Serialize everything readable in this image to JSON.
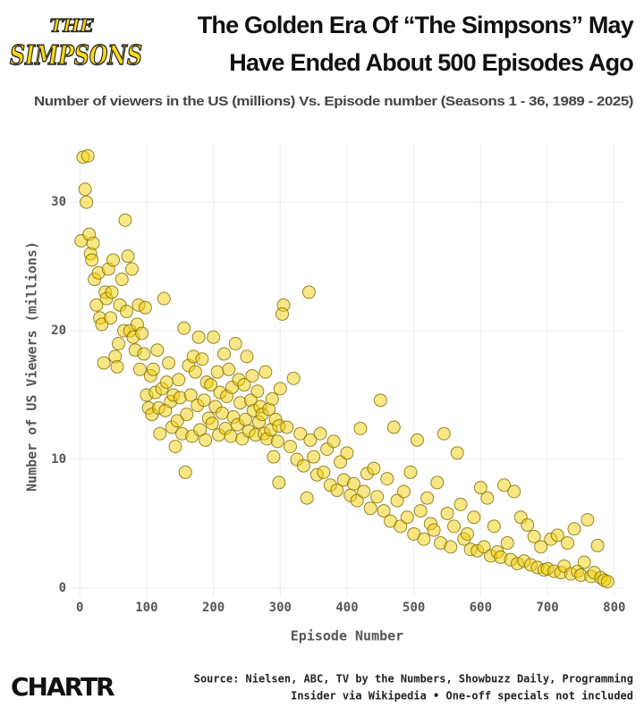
{
  "chart_data": {
    "type": "scatter",
    "logo": [
      "THE",
      "SIMPSONS"
    ],
    "title": [
      "The Golden Era Of “The Simpsons” May",
      "Have Ended About 500 Episodes Ago"
    ],
    "subtitle": "Number of viewers in the US (millions) Vs. Episode number (Seasons 1 - 36, 1989 - 2025)",
    "x_label": "Episode Number",
    "y_label": "Number of US Viewers (millions)",
    "source": [
      "Source: Nielsen, ABC, TV by the Numbers, Showbuzz Daily, Programming",
      "Insider via Wikipedia • One-off specials not included"
    ],
    "brand": "CHARTR",
    "color": "#f2cf0a",
    "edge_color": "#7d6a00",
    "grid": true,
    "xlim": [
      -15,
      815
    ],
    "ylim": [
      -0.7,
      34.6
    ],
    "xticks": [
      0,
      100,
      200,
      300,
      400,
      500,
      600,
      700,
      800
    ],
    "yticks": [
      0,
      10,
      20,
      30
    ],
    "x": [
      2,
      5,
      8,
      10,
      12,
      14,
      16,
      18,
      20,
      22,
      25,
      28,
      30,
      33,
      36,
      38,
      40,
      43,
      46,
      48,
      50,
      53,
      56,
      58,
      60,
      63,
      66,
      68,
      70,
      72,
      75,
      78,
      80,
      83,
      86,
      88,
      90,
      93,
      96,
      98,
      100,
      103,
      106,
      108,
      110,
      113,
      116,
      118,
      120,
      123,
      126,
      128,
      130,
      133,
      136,
      138,
      140,
      143,
      146,
      148,
      150,
      153,
      156,
      158,
      160,
      163,
      166,
      168,
      170,
      173,
      176,
      178,
      180,
      183,
      186,
      188,
      190,
      193,
      196,
      198,
      200,
      203,
      206,
      208,
      210,
      213,
      216,
      218,
      220,
      223,
      226,
      228,
      230,
      233,
      236,
      238,
      240,
      243,
      246,
      248,
      250,
      253,
      256,
      258,
      260,
      263,
      266,
      268,
      270,
      273,
      276,
      278,
      280,
      283,
      286,
      288,
      290,
      293,
      296,
      298,
      300,
      305,
      310,
      315,
      320,
      325,
      330,
      335,
      340,
      345,
      350,
      355,
      360,
      365,
      370,
      375,
      380,
      385,
      390,
      395,
      400,
      405,
      410,
      415,
      420,
      425,
      430,
      435,
      440,
      445,
      450,
      343,
      303,
      298,
      455,
      460,
      465,
      470,
      475,
      480,
      485,
      490,
      495,
      500,
      505,
      510,
      515,
      520,
      525,
      530,
      535,
      540,
      545,
      550,
      555,
      560,
      565,
      570,
      575,
      580,
      585,
      590,
      595,
      600,
      605,
      610,
      615,
      620,
      625,
      630,
      635,
      640,
      645,
      650,
      655,
      660,
      665,
      670,
      675,
      680,
      685,
      690,
      695,
      700,
      705,
      710,
      715,
      720,
      725,
      730,
      735,
      740,
      745,
      750,
      755,
      760,
      765,
      770,
      775,
      780,
      785,
      790
    ],
    "values": [
      27,
      33.5,
      31,
      30,
      33.6,
      27.5,
      26,
      25.5,
      26.8,
      24,
      22,
      24.5,
      21,
      20.5,
      17.5,
      23,
      22.5,
      24.8,
      21,
      23,
      25.5,
      18,
      17.2,
      19,
      22,
      24,
      20,
      28.6,
      21.5,
      25.8,
      20,
      24.8,
      19.5,
      18.5,
      20.5,
      22,
      17,
      19.8,
      18.2,
      21.8,
      15,
      14,
      16.5,
      13.5,
      17,
      15.2,
      18.5,
      14,
      12,
      15.5,
      22.5,
      13.8,
      16,
      17.5,
      14.5,
      12.5,
      15,
      11,
      13,
      16.2,
      14.8,
      12,
      20.2,
      9,
      13.5,
      17.3,
      15,
      11.8,
      18,
      16.8,
      14.2,
      19.5,
      12.3,
      17.8,
      14.6,
      11.5,
      16,
      13.2,
      15.8,
      12.8,
      19.5,
      14.1,
      16.8,
      11.9,
      15.2,
      13.6,
      18.2,
      12.4,
      14.9,
      17,
      11.8,
      15.6,
      13.3,
      19,
      12.7,
      16.2,
      14.4,
      11.6,
      15.8,
      13.1,
      18,
      12.2,
      14.6,
      16.5,
      13.8,
      11.9,
      15.3,
      12.9,
      14.1,
      13.5,
      12,
      16.8,
      11.6,
      13.9,
      12.3,
      14.7,
      10.2,
      13.1,
      11.4,
      12.6,
      15.5,
      22,
      12.5,
      11,
      16.3,
      10,
      12,
      9.5,
      7,
      11.5,
      10.2,
      8.8,
      12,
      9,
      10.8,
      8,
      11.4,
      7.6,
      9.8,
      8.4,
      10.5,
      7.2,
      8.1,
      6.8,
      12.4,
      7.5,
      8.9,
      6.2,
      9.3,
      7.1,
      14.6,
      23,
      21.3,
      8.2,
      6,
      8.5,
      5.2,
      12.5,
      6.8,
      4.8,
      7.5,
      5.5,
      9,
      4.2,
      11.5,
      6,
      3.8,
      7,
      5,
      4.5,
      8.2,
      3.5,
      12,
      5.8,
      3.2,
      4.8,
      10.5,
      6.5,
      3.8,
      4.2,
      3,
      5.5,
      2.9,
      7.8,
      3.2,
      7,
      2.5,
      4.8,
      2.8,
      2.4,
      8,
      3.5,
      2.2,
      7.5,
      1.9,
      5.5,
      2.1,
      4.9,
      1.8,
      4,
      1.6,
      3.2,
      1.4,
      1.5,
      3.8,
      1.3,
      4.1,
      1.2,
      1.7,
      3.5,
      1.1,
      4.6,
      1.3,
      1,
      2,
      5.3,
      0.9,
      1.2,
      3.3,
      0.8,
      0.6,
      0.5
    ]
  }
}
